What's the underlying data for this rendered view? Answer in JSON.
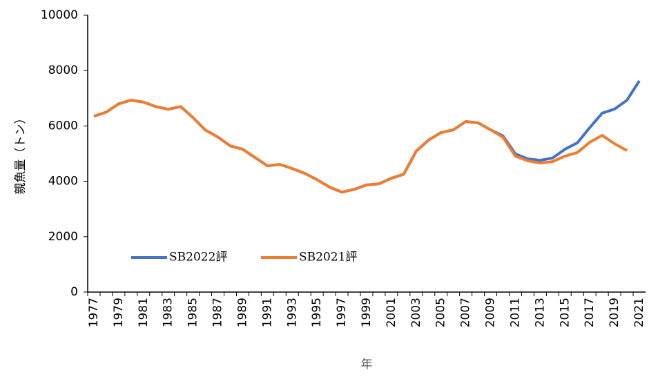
{
  "chart_data": {
    "type": "line",
    "categories": [
      "1977",
      null,
      "1979",
      null,
      "1981",
      null,
      "1983",
      null,
      "1985",
      null,
      "1987",
      null,
      "1989",
      null,
      "1991",
      null,
      "1993",
      null,
      "1995",
      null,
      "1997",
      null,
      "1999",
      null,
      "2001",
      null,
      "2003",
      null,
      "2005",
      null,
      "2007",
      null,
      "2009",
      null,
      "2011",
      null,
      "2013",
      null,
      "2015",
      null,
      "2017",
      null,
      "2019",
      null,
      "2021"
    ],
    "series": [
      {
        "name": "SB2022評",
        "color": "#4472c4",
        "values": [
          6350,
          6500,
          6800,
          6930,
          6860,
          6700,
          6600,
          6700,
          6300,
          5850,
          5600,
          5280,
          5160,
          4860,
          4560,
          4610,
          4460,
          4290,
          4060,
          3790,
          3610,
          3710,
          3870,
          3910,
          4110,
          4260,
          5090,
          5490,
          5760,
          5860,
          6160,
          6110,
          5860,
          5640,
          4990,
          4810,
          4760,
          4840,
          5160,
          5390,
          5940,
          6460,
          6610,
          6930,
          7630
        ]
      },
      {
        "name": "SB2021評",
        "color": "#ed7d31",
        "values": [
          6350,
          6500,
          6800,
          6930,
          6860,
          6700,
          6600,
          6700,
          6300,
          5850,
          5600,
          5280,
          5160,
          4860,
          4560,
          4610,
          4460,
          4290,
          4060,
          3790,
          3610,
          3710,
          3870,
          3910,
          4110,
          4260,
          5090,
          5490,
          5760,
          5860,
          6160,
          6110,
          5860,
          5590,
          4910,
          4740,
          4660,
          4710,
          4910,
          5040,
          5410,
          5660,
          5360,
          5110,
          null
        ]
      }
    ],
    "ylim": [
      0,
      10000
    ],
    "yticks": [
      0,
      2000,
      4000,
      6000,
      8000,
      10000
    ],
    "y_label": "親魚量（トン）",
    "x_label": "年",
    "grid": false,
    "legend": "bottom-left"
  }
}
